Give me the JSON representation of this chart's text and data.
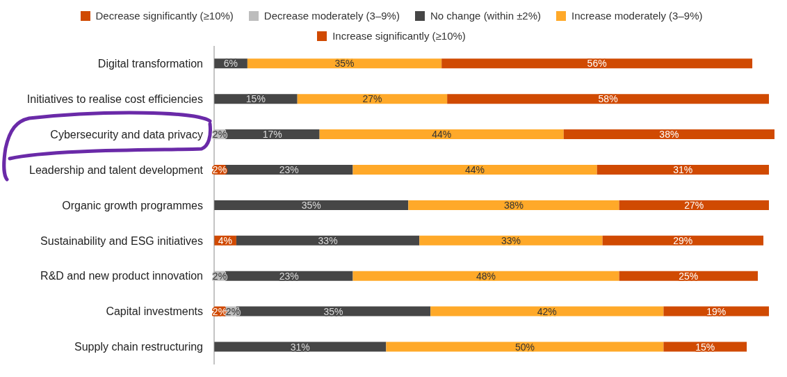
{
  "chart_data": {
    "type": "bar",
    "orientation": "horizontal",
    "stacked": true,
    "categories": [
      "Digital transformation",
      "Initiatives to realise cost efficiencies",
      "Cybersecurity and data privacy",
      "Leadership and talent development",
      "Organic growth programmes",
      "Sustainability and ESG initiatives",
      "R&D and new product innovation",
      "Capital investments",
      "Supply chain restructuring"
    ],
    "series": [
      {
        "name": "Decrease significantly (≥10%)",
        "color": "#d04a02",
        "values": [
          null,
          null,
          null,
          2,
          null,
          4,
          null,
          2,
          null
        ],
        "value_labels": [
          null,
          null,
          null,
          "2%",
          null,
          "4%",
          null,
          "2%",
          null
        ]
      },
      {
        "name": "Decrease moderately (3–9%)",
        "color": "#bdbdbd",
        "values": [
          null,
          null,
          2,
          null,
          null,
          null,
          2,
          2,
          null
        ],
        "value_labels": [
          null,
          null,
          "2%",
          null,
          null,
          null,
          "2%",
          "2%",
          null
        ]
      },
      {
        "name": "No change (within ±2%)",
        "color": "#464646",
        "values": [
          6,
          15,
          17,
          23,
          35,
          33,
          23,
          35,
          31
        ],
        "value_labels": [
          "6%",
          "15%",
          "17%",
          "23%",
          "35%",
          "33%",
          "23%",
          "35%",
          "31%"
        ]
      },
      {
        "name": "Increase moderately (3–9%)",
        "color": "#ffa929",
        "values": [
          35,
          27,
          44,
          44,
          38,
          33,
          48,
          42,
          50
        ],
        "value_labels": [
          "35%",
          "27%",
          "44%",
          "44%",
          "38%",
          "33%",
          "48%",
          "42%",
          "50%"
        ]
      },
      {
        "name": "Increase significantly (≥10%)",
        "color": "#d04a02",
        "values": [
          56,
          58,
          38,
          31,
          27,
          29,
          25,
          19,
          15
        ],
        "value_labels": [
          "56%",
          "58%",
          "38%",
          "31%",
          "27%",
          "29%",
          "25%",
          "19%",
          "15%"
        ]
      }
    ],
    "tick_labels": "y",
    "legend": "top"
  }
}
